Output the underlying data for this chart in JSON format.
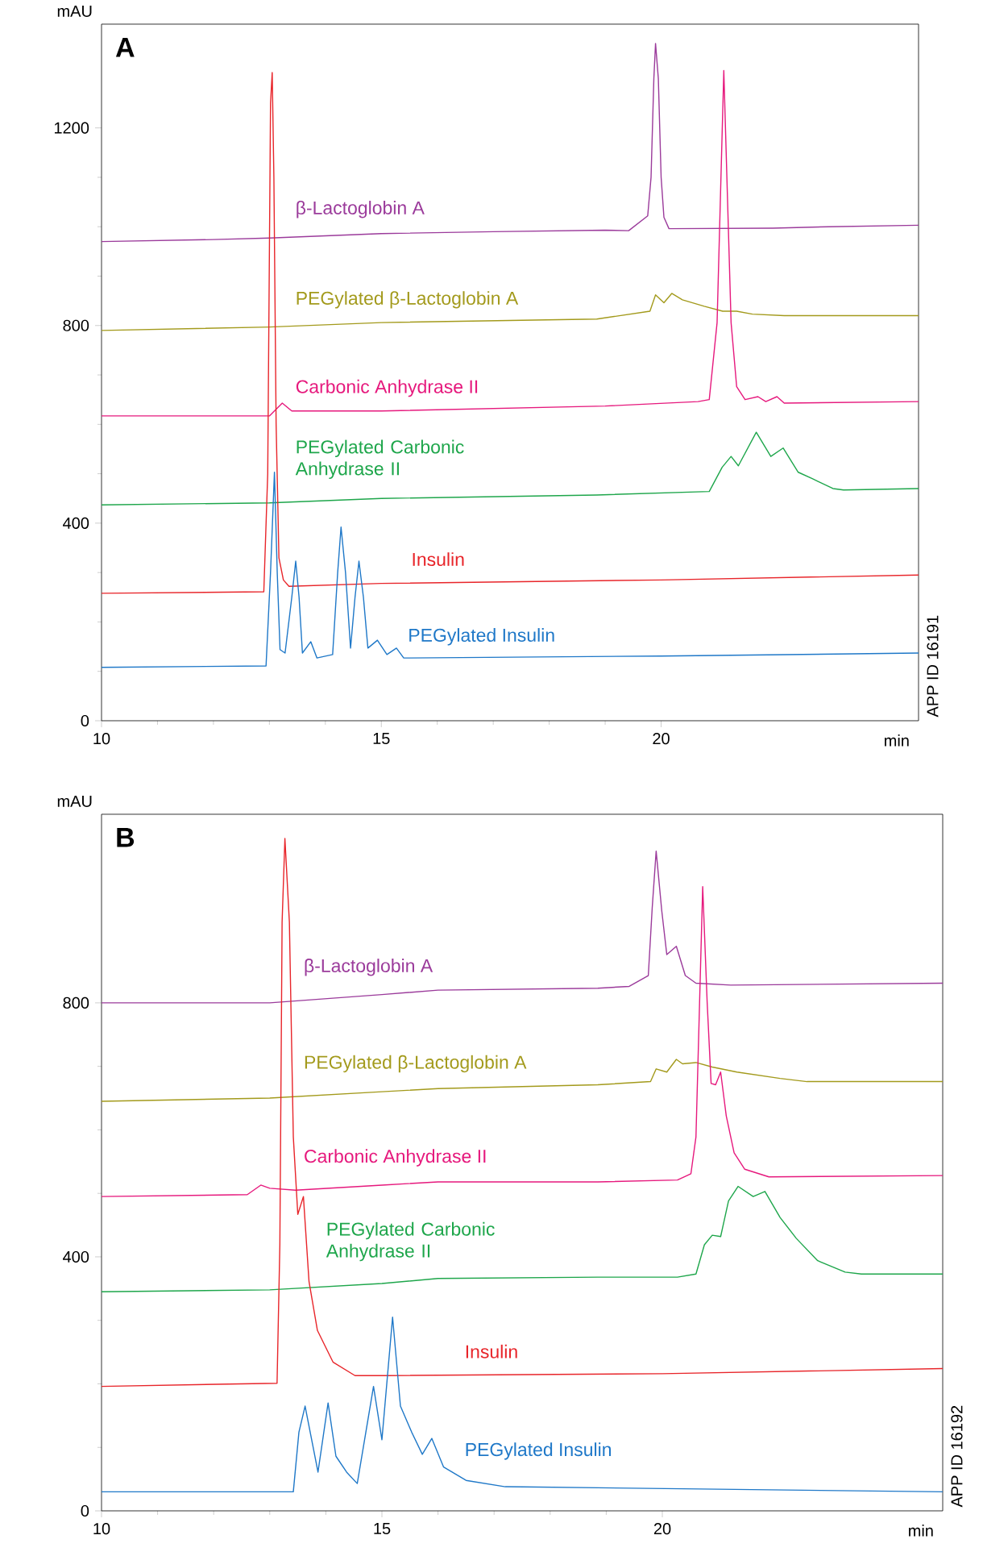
{
  "chart_data": [
    {
      "type": "line",
      "title": "A",
      "xlabel": "min",
      "ylabel": "mAU",
      "xlim": [
        10,
        24.6
      ],
      "ylim": [
        0,
        1410
      ],
      "xticks": [
        10,
        15,
        20
      ],
      "yticks": [
        0,
        400,
        800,
        1200
      ],
      "annotations": [
        "APP ID 16191"
      ],
      "series": [
        {
          "name": "β-Lactoglobin A",
          "color": "#9b3b9b",
          "x": [
            10,
            12,
            13,
            15,
            17,
            19,
            19.42,
            19.76,
            19.82,
            19.87,
            19.9,
            19.95,
            20.0,
            20.05,
            20.14,
            22,
            23,
            24.6
          ],
          "values": [
            970,
            974,
            977,
            986,
            990,
            993,
            992,
            1022,
            1100,
            1300,
            1371,
            1300,
            1100,
            1019,
            996,
            997,
            1000,
            1003
          ]
        },
        {
          "name": "PEGylated β-Lactoglobin A",
          "color": "#a39a1c",
          "x": [
            10,
            13,
            15,
            18.85,
            19.8,
            19.9,
            20.05,
            20.19,
            20.38,
            20.77,
            21.1,
            21.35,
            21.63,
            22.2,
            24.6
          ],
          "values": [
            790,
            797,
            806,
            813,
            829,
            862,
            846,
            865,
            852,
            839,
            829,
            829,
            823,
            820,
            820
          ]
        },
        {
          "name": "Carbonic Anhydrase II",
          "color": "#e6197d",
          "x": [
            10,
            13,
            13.23,
            13.4,
            15,
            19,
            20.66,
            20.86,
            21.0,
            21.12,
            21.25,
            21.35,
            21.5,
            21.73,
            21.87,
            22.07,
            22.2,
            24.6
          ],
          "values": [
            617,
            617,
            643,
            627,
            627,
            637,
            646,
            650,
            806,
            1316,
            806,
            676,
            650,
            656,
            646,
            656,
            643,
            646
          ]
        },
        {
          "name": "PEGylated Carbonic Anhydrase II",
          "color": "#1ea64b",
          "x": [
            10,
            13,
            15,
            18.85,
            20.86,
            21.09,
            21.25,
            21.38,
            21.7,
            21.96,
            22.18,
            22.45,
            22.7,
            23.07,
            23.26,
            24.6
          ],
          "values": [
            437,
            441,
            450,
            457,
            464,
            513,
            535,
            516,
            584,
            535,
            552,
            503,
            490,
            470,
            467,
            470
          ]
        },
        {
          "name": "Insulin",
          "color": "#e8252a",
          "x": [
            10,
            12.9,
            12.97,
            13.02,
            13.05,
            13.08,
            13.12,
            13.17,
            13.25,
            13.35,
            15,
            20,
            24.6
          ],
          "values": [
            258,
            261,
            500,
            1250,
            1312,
            1100,
            600,
            330,
            285,
            272,
            278,
            285,
            295
          ]
        },
        {
          "name": "PEGylated Insulin",
          "color": "#1f78c8",
          "x": [
            10,
            12.94,
            13.02,
            13.09,
            13.14,
            13.19,
            13.28,
            13.4,
            13.47,
            13.53,
            13.59,
            13.74,
            13.85,
            14.13,
            14.22,
            14.28,
            14.36,
            14.45,
            14.53,
            14.6,
            14.68,
            14.76,
            14.93,
            15.1,
            15.27,
            15.4,
            20,
            24.6
          ],
          "values": [
            108,
            111,
            300,
            503,
            300,
            144,
            137,
            250,
            323,
            250,
            137,
            160,
            127,
            134,
            300,
            392,
            300,
            147,
            250,
            323,
            250,
            147,
            163,
            134,
            147,
            127,
            131,
            137
          ]
        }
      ]
    },
    {
      "type": "line",
      "title": "B",
      "xlabel": "min",
      "ylabel": "mAU",
      "xlim": [
        10,
        25
      ],
      "ylim": [
        0,
        1097
      ],
      "xticks": [
        10,
        15,
        20
      ],
      "yticks": [
        0,
        400,
        800
      ],
      "annotations": [
        "APP ID 16192"
      ],
      "series": [
        {
          "name": "β-Lactoglobin A",
          "color": "#9b3b9b",
          "x": [
            10,
            13,
            15,
            16,
            18.85,
            19.41,
            19.75,
            19.82,
            19.89,
            19.99,
            20.08,
            20.25,
            20.41,
            20.6,
            21.22,
            25
          ],
          "values": [
            800,
            800,
            813,
            820,
            823,
            826,
            843,
            950,
            1039,
            945,
            876,
            889,
            843,
            831,
            828,
            831
          ]
        },
        {
          "name": "PEGylated β-Lactoglobin A",
          "color": "#a39a1c",
          "x": [
            10,
            13,
            15,
            16,
            18.85,
            19.79,
            19.89,
            20.08,
            20.25,
            20.36,
            20.6,
            20.89,
            21.33,
            22.1,
            22.58,
            25
          ],
          "values": [
            645,
            650,
            660,
            665,
            671,
            676,
            696,
            691,
            711,
            704,
            706,
            699,
            691,
            681,
            676,
            676
          ]
        },
        {
          "name": "Carbonic Anhydrase II",
          "color": "#e6197d",
          "x": [
            10,
            12.6,
            12.84,
            13.0,
            13.46,
            15,
            16,
            18.85,
            20.27,
            20.51,
            20.6,
            20.72,
            20.8,
            20.87,
            20.95,
            21.04,
            21.14,
            21.28,
            21.47,
            21.9,
            25
          ],
          "values": [
            495,
            498,
            513,
            508,
            505,
            513,
            518,
            518,
            521,
            531,
            589,
            983,
            800,
            673,
            671,
            691,
            622,
            564,
            538,
            526,
            528
          ]
        },
        {
          "name": "PEGylated Carbonic Anhydrase II",
          "color": "#1ea64b",
          "x": [
            10,
            13,
            15,
            16,
            18.85,
            20.27,
            20.6,
            20.75,
            20.89,
            21.04,
            21.18,
            21.35,
            21.62,
            21.83,
            22.1,
            22.39,
            22.77,
            23.26,
            23.55,
            25
          ],
          "values": [
            345,
            348,
            358,
            366,
            368,
            368,
            373,
            419,
            434,
            432,
            488,
            511,
            495,
            503,
            462,
            429,
            394,
            376,
            373,
            373
          ]
        },
        {
          "name": "Insulin",
          "color": "#e8252a",
          "x": [
            10,
            13.13,
            13.18,
            13.22,
            13.27,
            13.35,
            13.42,
            13.5,
            13.6,
            13.7,
            13.85,
            14.13,
            14.52,
            15.1,
            20,
            25
          ],
          "values": [
            196,
            201,
            419,
            927,
            1059,
            927,
            589,
            467,
            495,
            361,
            284,
            234,
            213,
            213,
            216,
            224
          ]
        },
        {
          "name": "PEGylated Insulin",
          "color": "#1f78c8",
          "x": [
            10,
            13.42,
            13.52,
            13.63,
            13.86,
            14.04,
            14.18,
            14.37,
            14.56,
            14.85,
            15.0,
            15.19,
            15.33,
            15.53,
            15.72,
            15.89,
            16.1,
            16.5,
            17.2,
            25
          ],
          "values": [
            30,
            30,
            124,
            165,
            61,
            170,
            86,
            61,
            43,
            196,
            112,
            305,
            165,
            124,
            89,
            114,
            69,
            48,
            38,
            30
          ]
        }
      ]
    }
  ]
}
